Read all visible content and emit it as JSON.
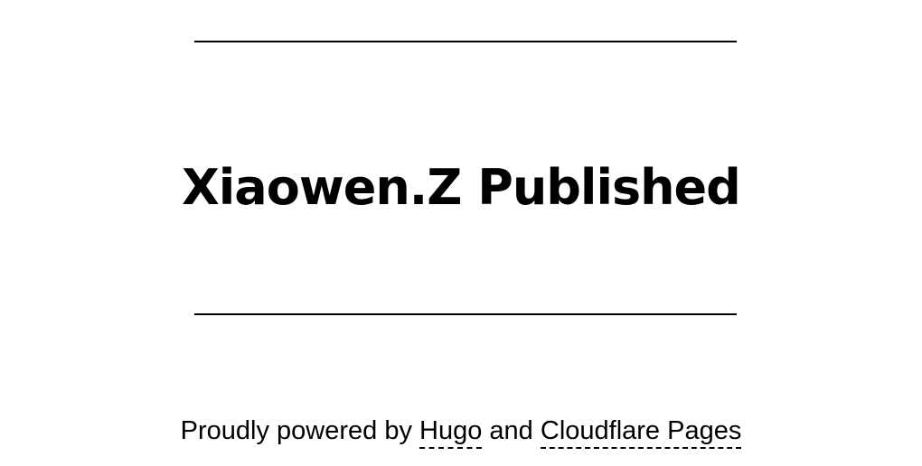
{
  "site": {
    "title": "Xiaowen.Z Published"
  },
  "footer": {
    "prefix": "Proudly powered by",
    "link_hugo": "Hugo",
    "conjunction": "and",
    "link_cloudflare": "Cloudflare Pages"
  }
}
